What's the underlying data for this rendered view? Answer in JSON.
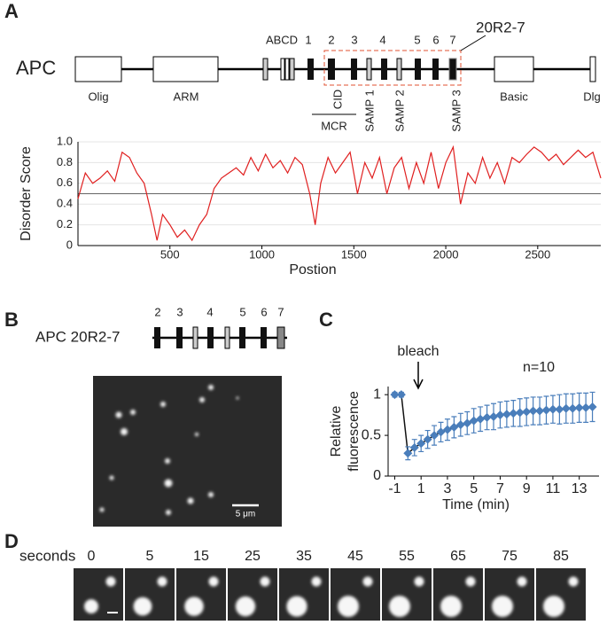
{
  "panels": [
    "A",
    "B",
    "C",
    "D"
  ],
  "apc_diagram": {
    "name": "APC",
    "construct": "20R2-7",
    "domains": [
      "Olig",
      "ARM",
      "Basic",
      "Dlg"
    ],
    "repeat_labels": [
      "ABCD",
      "1",
      "2",
      "3",
      "4",
      "5",
      "6",
      "7"
    ],
    "region_labels": [
      "CID",
      "MCR",
      "SAMP 1",
      "SAMP 2",
      "SAMP 3"
    ]
  },
  "construct_diagram": {
    "name": "APC 20R2-7",
    "repeat_labels": [
      "2",
      "3",
      "4",
      "5",
      "6",
      "7"
    ]
  },
  "micrograph": {
    "scale_bar": "5 μm"
  },
  "timelapse": {
    "unit": "seconds",
    "times": [
      "0",
      "5",
      "15",
      "25",
      "35",
      "45",
      "55",
      "65",
      "75",
      "85"
    ]
  },
  "chart_data": [
    {
      "type": "line",
      "ylabel": "Disorder Score",
      "xlabel": "Postion",
      "xlim": [
        0,
        2843
      ],
      "ylim": [
        0,
        1
      ],
      "xticks": [
        1000,
        1500,
        2000,
        2500,
        500
      ],
      "yticks": [
        0,
        0.2,
        0.4,
        0.6,
        0.8,
        {
          "value": 1,
          "label": "1.0"
        }
      ],
      "grid": true,
      "reference_line": 0.5,
      "x": [
        0,
        40,
        80,
        120,
        160,
        200,
        240,
        280,
        320,
        360,
        400,
        430,
        460,
        500,
        540,
        580,
        620,
        660,
        700,
        740,
        780,
        820,
        860,
        900,
        940,
        980,
        1020,
        1060,
        1100,
        1140,
        1180,
        1220,
        1260,
        1290,
        1320,
        1360,
        1400,
        1440,
        1480,
        1520,
        1560,
        1600,
        1640,
        1680,
        1720,
        1760,
        1800,
        1840,
        1880,
        1920,
        1960,
        2000,
        2040,
        2080,
        2120,
        2160,
        2200,
        2240,
        2280,
        2320,
        2360,
        2400,
        2440,
        2480,
        2520,
        2560,
        2600,
        2640,
        2680,
        2720,
        2760,
        2800,
        2843
      ],
      "series": [
        {
          "color": "#e02020",
          "values": [
            0.45,
            0.7,
            0.6,
            0.65,
            0.72,
            0.62,
            0.9,
            0.85,
            0.7,
            0.6,
            0.3,
            0.05,
            0.3,
            0.2,
            0.08,
            0.15,
            0.05,
            0.2,
            0.3,
            0.55,
            0.65,
            0.7,
            0.75,
            0.68,
            0.85,
            0.72,
            0.88,
            0.75,
            0.82,
            0.7,
            0.85,
            0.78,
            0.5,
            0.2,
            0.6,
            0.85,
            0.7,
            0.8,
            0.9,
            0.5,
            0.8,
            0.65,
            0.85,
            0.5,
            0.75,
            0.85,
            0.55,
            0.8,
            0.6,
            0.9,
            0.55,
            0.8,
            0.95,
            0.4,
            0.7,
            0.6,
            0.85,
            0.65,
            0.8,
            0.6,
            0.85,
            0.8,
            0.88,
            0.95,
            0.9,
            0.82,
            0.88,
            0.78,
            0.85,
            0.92,
            0.85,
            0.9,
            0.65
          ]
        }
      ]
    },
    {
      "type": "errorline",
      "ylabel": [
        "Relative",
        "fluorescence"
      ],
      "xlabel": "Time (min)",
      "annotations": [
        "bleach",
        "n=10"
      ],
      "xlim": [
        -1.5,
        14.5
      ],
      "ylim": [
        0,
        1.1
      ],
      "xticks": [
        -1,
        1,
        3,
        5,
        7,
        9,
        11,
        13
      ],
      "yticks": [
        0,
        0.5,
        1
      ],
      "x": [
        -1,
        -0.5,
        0,
        0.5,
        1,
        1.5,
        2,
        2.5,
        3,
        3.5,
        4,
        4.5,
        5,
        5.5,
        6,
        6.5,
        7,
        7.5,
        8,
        8.5,
        9,
        9.5,
        10,
        10.5,
        11,
        11.5,
        12,
        12.5,
        13,
        13.5,
        14
      ],
      "series": [
        {
          "color": "#4a7ebb",
          "values": [
            1.0,
            1.0,
            0.28,
            0.35,
            0.4,
            0.45,
            0.5,
            0.54,
            0.57,
            0.6,
            0.63,
            0.65,
            0.68,
            0.7,
            0.72,
            0.73,
            0.75,
            0.76,
            0.77,
            0.78,
            0.79,
            0.8,
            0.8,
            0.81,
            0.82,
            0.82,
            0.83,
            0.83,
            0.84,
            0.84,
            0.85
          ],
          "errors": [
            0.03,
            0.03,
            0.08,
            0.1,
            0.1,
            0.11,
            0.12,
            0.12,
            0.13,
            0.13,
            0.14,
            0.14,
            0.15,
            0.15,
            0.15,
            0.16,
            0.16,
            0.16,
            0.16,
            0.17,
            0.17,
            0.17,
            0.17,
            0.17,
            0.17,
            0.18,
            0.18,
            0.18,
            0.18,
            0.18,
            0.18
          ]
        }
      ]
    }
  ]
}
